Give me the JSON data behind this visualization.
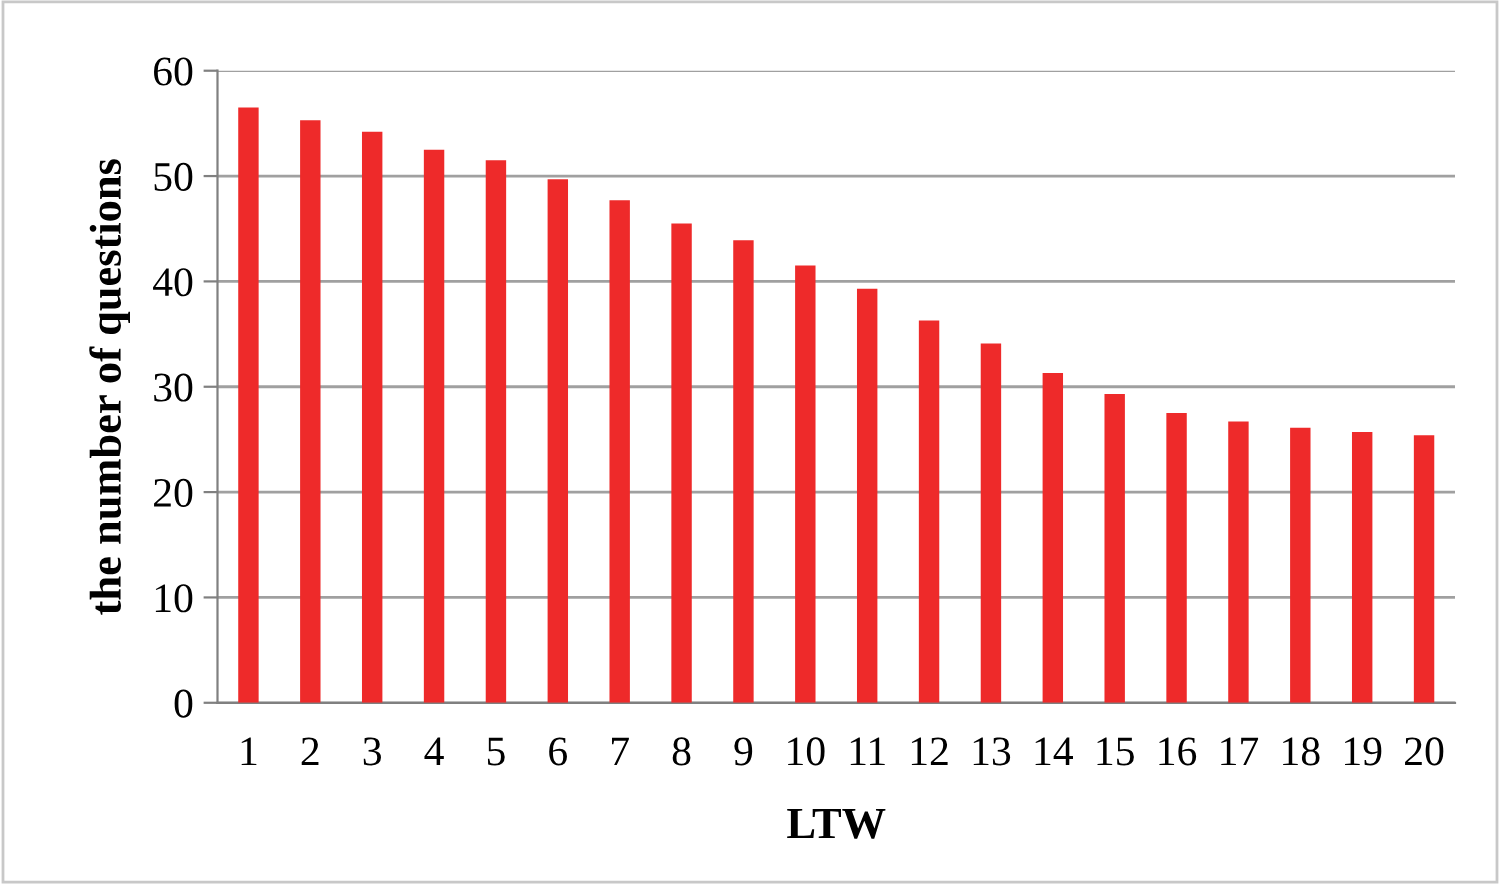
{
  "chart_data": {
    "type": "bar",
    "xlabel": "LTW",
    "ylabel": "the number of questions",
    "categories": [
      "1",
      "2",
      "3",
      "4",
      "5",
      "6",
      "7",
      "8",
      "9",
      "10",
      "11",
      "12",
      "13",
      "14",
      "15",
      "16",
      "17",
      "18",
      "19",
      "20"
    ],
    "values": [
      56.5,
      55.3,
      54.2,
      52.5,
      51.5,
      49.7,
      47.7,
      45.5,
      43.9,
      41.5,
      39.3,
      36.3,
      34.1,
      31.3,
      29.3,
      27.5,
      26.7,
      26.1,
      25.7,
      25.4
    ],
    "color": "#ee2a2a",
    "ylim": [
      0,
      60
    ],
    "yticks": [
      0,
      10,
      20,
      30,
      40,
      50,
      60
    ],
    "grid": "y"
  }
}
